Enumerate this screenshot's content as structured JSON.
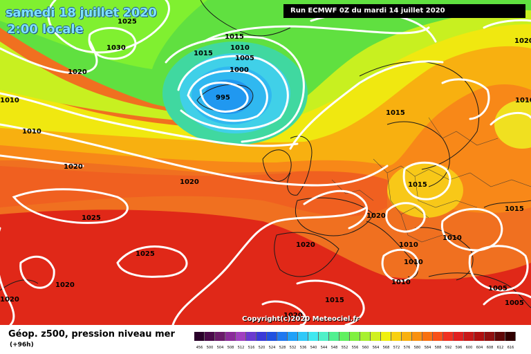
{
  "title": {
    "date": "samedi 18 juillet 2020",
    "time": "2:00 locale"
  },
  "run_banner": "Run ECMWF 0Z du mardi 14 juillet 2020",
  "legend": {
    "title": "Géop. z500, pression niveau mer",
    "lead": "(+96h)",
    "scale_values": [
      "456",
      "500",
      "504",
      "508",
      "512",
      "516",
      "520",
      "524",
      "528",
      "532",
      "536",
      "540",
      "544",
      "548",
      "552",
      "556",
      "560",
      "564",
      "568",
      "572",
      "576",
      "580",
      "584",
      "588",
      "592",
      "596",
      "600",
      "604",
      "608",
      "612",
      "616"
    ],
    "scale_colors": [
      "#2a002a",
      "#4a0a4a",
      "#6a1a6a",
      "#8a2a9a",
      "#a040c0",
      "#6a3ad0",
      "#3a3ad8",
      "#2050e0",
      "#2078f0",
      "#20a0f8",
      "#30c8f8",
      "#40e8f0",
      "#50f0c8",
      "#50f090",
      "#60f060",
      "#80f040",
      "#a8f030",
      "#d0f020",
      "#f0f010",
      "#f8d010",
      "#f8b010",
      "#f89010",
      "#f87010",
      "#f85018",
      "#f03020",
      "#e02020",
      "#c81818",
      "#b01010",
      "#901010",
      "#600808",
      "#300000"
    ]
  },
  "copyright": "Copyright(c)2020 Meteociel.fr",
  "isobar_labels": [
    "1025",
    "1030",
    "1020",
    "1010",
    "1010",
    "1020",
    "1015",
    "1015",
    "1010",
    "1005",
    "1000",
    "995",
    "1020",
    "1025",
    "1025",
    "1020",
    "1020",
    "1015",
    "1015",
    "1020",
    "1010",
    "1010",
    "1010",
    "1010",
    "1005",
    "1005",
    "1015",
    "1020",
    "1020",
    "1020",
    "1010",
    "1015"
  ]
}
